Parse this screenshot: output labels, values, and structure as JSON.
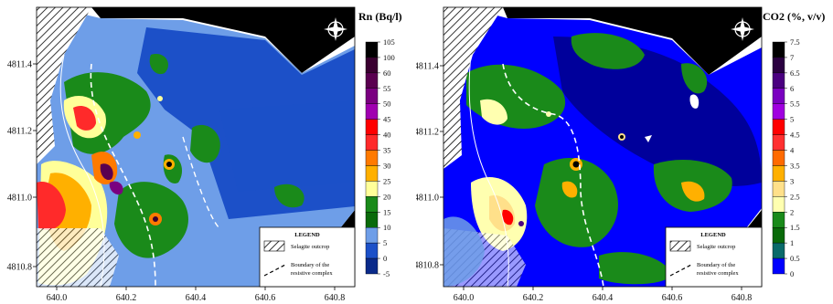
{
  "left": {
    "title": "Rn (Bq/l)",
    "x_ticks": [
      "640.0",
      "640.2",
      "640.4",
      "640.6",
      "640.8"
    ],
    "y_ticks": [
      "4811.4",
      "4811.2",
      "4811.0",
      "4810.8"
    ],
    "colorbar": [
      "105",
      "100",
      "60",
      "55",
      "50",
      "45",
      "40",
      "35",
      "30",
      "25",
      "20",
      "15",
      "10",
      "5",
      "0",
      "-5"
    ],
    "colors": [
      "#000000",
      "#3a0030",
      "#5a0050",
      "#7a0080",
      "#a000b0",
      "#ff0000",
      "#ff2a2a",
      "#ff7a00",
      "#ffb000",
      "#ffff99",
      "#1a8a1a",
      "#0a6a0a",
      "#6e9ee8",
      "#1c50c8",
      "#0a2a8a"
    ],
    "legend": {
      "title": "LEGEND",
      "item1": "Selagite outcrop",
      "item2_line1": "Boundary of the",
      "item2_line2": "resistive complex"
    }
  },
  "right": {
    "title": "CO2 (%, v/v)",
    "x_ticks": [
      "640.0",
      "640.2",
      "640.4",
      "640.6",
      "640.8"
    ],
    "y_ticks": [
      "4811.4",
      "4811.2",
      "4811.0",
      "4810.8"
    ],
    "colorbar": [
      "7.5",
      "7",
      "6.5",
      "6",
      "5.5",
      "5",
      "4.5",
      "4",
      "3.5",
      "3",
      "2.5",
      "2",
      "1.5",
      "1",
      "0.5",
      "0"
    ],
    "colors": [
      "#000000",
      "#2a0040",
      "#4a0080",
      "#7a00c0",
      "#a000e0",
      "#ff0000",
      "#ff3030",
      "#ff6a00",
      "#ffb000",
      "#ffe08a",
      "#ffffb0",
      "#1a8a1a",
      "#0a6a0a",
      "#0a6a6a",
      "#0000ff"
    ],
    "legend": {
      "title": "LEGEND",
      "item1": "Selagite outcrop",
      "item2_line1": "Boundary of the",
      "item2_line2": "resistive complex"
    }
  }
}
